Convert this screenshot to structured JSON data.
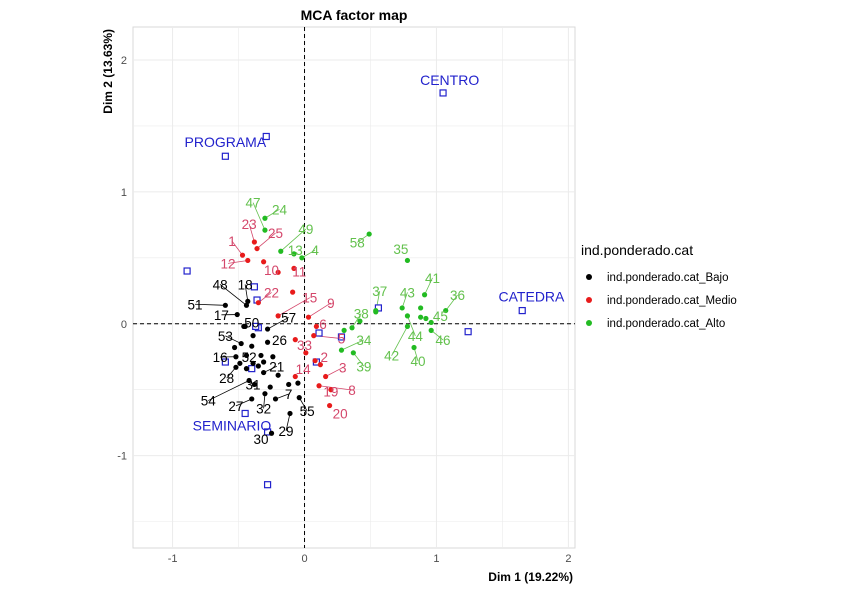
{
  "chart_data": {
    "type": "scatter",
    "title": "MCA factor map",
    "xlabel": "Dim 1 (19.22%)",
    "ylabel": "Dim 2 (13.63%)",
    "xlim": [
      -1.3,
      2.05
    ],
    "ylim": [
      -1.7,
      2.25
    ],
    "xticks": [
      -1,
      0,
      1,
      2
    ],
    "yticks": [
      -1,
      0,
      1,
      2
    ],
    "grid": true,
    "legend": {
      "title": "ind.ponderado.cat",
      "position": "right",
      "entries": [
        {
          "label": "ind.ponderado.cat_Bajo",
          "color": "#000000"
        },
        {
          "label": "ind.ponderado.cat_Medio",
          "color": "#e81b1b"
        },
        {
          "label": "ind.ponderado.cat_Alto",
          "color": "#22bb22"
        }
      ]
    },
    "colors": {
      "Bajo_point": "#000000",
      "Bajo_label": "#000000",
      "Medio_point": "#e81b1b",
      "Medio_label": "#d4466a",
      "Alto_point": "#22bb22",
      "Alto_label": "#63c14d",
      "category": "#2222cc"
    },
    "series": [
      {
        "name": "ind.ponderado.cat_Bajo",
        "points": [
          {
            "id": "7",
            "x": -0.22,
            "y": -0.57,
            "lx": -0.12,
            "ly": -0.57
          },
          {
            "id": "16",
            "x": -0.52,
            "y": -0.25,
            "lx": -0.64,
            "ly": -0.29
          },
          {
            "id": "17",
            "x": -0.51,
            "y": 0.07,
            "lx": -0.63,
            "ly": 0.03
          },
          {
            "id": "18",
            "x": -0.43,
            "y": 0.17,
            "lx": -0.45,
            "ly": 0.26
          },
          {
            "id": "21",
            "x": -0.31,
            "y": -0.37,
            "lx": -0.21,
            "ly": -0.36
          },
          {
            "id": "26",
            "x": -0.28,
            "y": -0.14,
            "lx": -0.19,
            "ly": -0.16
          },
          {
            "id": "27",
            "x": -0.4,
            "y": -0.57,
            "lx": -0.52,
            "ly": -0.66
          },
          {
            "id": "28",
            "x": -0.52,
            "y": -0.33,
            "lx": -0.59,
            "ly": -0.45
          },
          {
            "id": "29",
            "x": -0.11,
            "y": -0.68,
            "lx": -0.14,
            "ly": -0.85
          },
          {
            "id": "30",
            "x": -0.25,
            "y": -0.83,
            "lx": -0.33,
            "ly": -0.91
          },
          {
            "id": "31",
            "x": -0.38,
            "y": -0.46,
            "lx": -0.39,
            "ly": -0.5
          },
          {
            "id": "32",
            "x": -0.3,
            "y": -0.53,
            "lx": -0.31,
            "ly": -0.68
          },
          {
            "id": "48",
            "x": -0.44,
            "y": 0.14,
            "lx": -0.64,
            "ly": 0.26
          },
          {
            "id": "50",
            "x": -0.46,
            "y": -0.02,
            "lx": -0.4,
            "ly": -0.03
          },
          {
            "id": "51",
            "x": -0.6,
            "y": 0.14,
            "lx": -0.83,
            "ly": 0.11
          },
          {
            "id": "52",
            "x": -0.39,
            "y": -0.3,
            "lx": -0.42,
            "ly": -0.29
          },
          {
            "id": "53",
            "x": -0.48,
            "y": -0.15,
            "lx": -0.6,
            "ly": -0.13
          },
          {
            "id": "54",
            "x": -0.42,
            "y": -0.43,
            "lx": -0.73,
            "ly": -0.62
          },
          {
            "id": "55",
            "x": -0.04,
            "y": -0.56,
            "lx": 0.02,
            "ly": -0.7
          },
          {
            "id": "57",
            "x": -0.28,
            "y": -0.04,
            "lx": -0.12,
            "ly": 0.01
          },
          {
            "id": "b1",
            "x": -0.53,
            "y": -0.18
          },
          {
            "id": "b2",
            "x": -0.44,
            "y": -0.24
          },
          {
            "id": "b3",
            "x": -0.44,
            "y": -0.34
          },
          {
            "id": "b4",
            "x": -0.33,
            "y": -0.24
          },
          {
            "id": "b5",
            "x": -0.39,
            "y": -0.09
          },
          {
            "id": "b6",
            "x": -0.35,
            "y": -0.32
          },
          {
            "id": "b7",
            "x": -0.12,
            "y": -0.46
          },
          {
            "id": "b8",
            "x": -0.2,
            "y": -0.39
          },
          {
            "id": "b9",
            "x": -0.05,
            "y": -0.45
          },
          {
            "id": "b10",
            "x": -0.24,
            "y": -0.25
          },
          {
            "id": "b11",
            "x": -0.31,
            "y": -0.29
          },
          {
            "id": "b12",
            "x": -0.4,
            "y": -0.17
          },
          {
            "id": "b13",
            "x": -0.49,
            "y": -0.3
          },
          {
            "id": "b14",
            "x": -0.26,
            "y": -0.48
          },
          {
            "id": "b15",
            "x": -0.45,
            "y": -0.02
          }
        ]
      },
      {
        "name": "ind.ponderado.cat_Medio",
        "points": [
          {
            "id": "1",
            "x": -0.47,
            "y": 0.52,
            "lx": -0.55,
            "ly": 0.59
          },
          {
            "id": "2",
            "x": 0.12,
            "y": -0.31,
            "lx": 0.15,
            "ly": -0.29
          },
          {
            "id": "3",
            "x": 0.16,
            "y": -0.4,
            "lx": 0.29,
            "ly": -0.37
          },
          {
            "id": "5",
            "x": 0.07,
            "y": -0.09,
            "lx": 0.28,
            "ly": -0.15
          },
          {
            "id": "6",
            "x": 0.09,
            "y": -0.02,
            "lx": 0.14,
            "ly": -0.04
          },
          {
            "id": "8",
            "x": 0.11,
            "y": -0.47,
            "lx": 0.36,
            "ly": -0.54
          },
          {
            "id": "9",
            "x": 0.03,
            "y": 0.05,
            "lx": 0.2,
            "ly": 0.12
          },
          {
            "id": "10",
            "x": -0.31,
            "y": 0.47,
            "lx": -0.25,
            "ly": 0.37
          },
          {
            "id": "11",
            "x": -0.08,
            "y": 0.42,
            "lx": -0.04,
            "ly": 0.36
          },
          {
            "id": "12",
            "x": -0.43,
            "y": 0.48,
            "lx": -0.58,
            "ly": 0.42
          },
          {
            "id": "14",
            "x": -0.07,
            "y": -0.4,
            "lx": -0.01,
            "ly": -0.38
          },
          {
            "id": "15",
            "x": -0.2,
            "y": 0.06,
            "lx": 0.04,
            "ly": 0.16
          },
          {
            "id": "19",
            "x": 0.2,
            "y": -0.5,
            "lx": 0.2,
            "ly": -0.55
          },
          {
            "id": "20",
            "x": 0.19,
            "y": -0.62,
            "lx": 0.27,
            "ly": -0.72
          },
          {
            "id": "22",
            "x": -0.35,
            "y": 0.16,
            "lx": -0.25,
            "ly": 0.2
          },
          {
            "id": "23",
            "x": -0.38,
            "y": 0.62,
            "lx": -0.42,
            "ly": 0.72
          },
          {
            "id": "25",
            "x": -0.36,
            "y": 0.57,
            "lx": -0.22,
            "ly": 0.65
          },
          {
            "id": "33",
            "x": -0.07,
            "y": -0.12,
            "lx": 0.0,
            "ly": -0.2
          },
          {
            "id": "m1",
            "x": -0.2,
            "y": 0.39
          },
          {
            "id": "m2",
            "x": 0.01,
            "y": -0.22
          },
          {
            "id": "m3",
            "x": 0.08,
            "y": -0.28
          },
          {
            "id": "m4",
            "x": -0.09,
            "y": 0.24
          }
        ]
      },
      {
        "name": "ind.ponderado.cat_Alto",
        "points": [
          {
            "id": "4",
            "x": -0.02,
            "y": 0.5,
            "lx": 0.08,
            "ly": 0.52
          },
          {
            "id": "13",
            "x": -0.08,
            "y": 0.53,
            "lx": -0.07,
            "ly": 0.52
          },
          {
            "id": "24",
            "x": -0.3,
            "y": 0.8,
            "lx": -0.19,
            "ly": 0.83
          },
          {
            "id": "34",
            "x": 0.28,
            "y": -0.2,
            "lx": 0.45,
            "ly": -0.16
          },
          {
            "id": "35",
            "x": 0.78,
            "y": 0.48,
            "lx": 0.73,
            "ly": 0.53
          },
          {
            "id": "36",
            "x": 1.07,
            "y": 0.1,
            "lx": 1.16,
            "ly": 0.18
          },
          {
            "id": "37",
            "x": 0.54,
            "y": 0.09,
            "lx": 0.57,
            "ly": 0.21
          },
          {
            "id": "38",
            "x": 0.36,
            "y": -0.03,
            "lx": 0.43,
            "ly": 0.04
          },
          {
            "id": "39",
            "x": 0.37,
            "y": -0.22,
            "lx": 0.45,
            "ly": -0.36
          },
          {
            "id": "40",
            "x": 0.83,
            "y": -0.18,
            "lx": 0.86,
            "ly": -0.32
          },
          {
            "id": "41",
            "x": 0.91,
            "y": 0.22,
            "lx": 0.97,
            "ly": 0.31
          },
          {
            "id": "42",
            "x": 0.78,
            "y": -0.02,
            "lx": 0.66,
            "ly": -0.28
          },
          {
            "id": "43",
            "x": 0.74,
            "y": 0.12,
            "lx": 0.78,
            "ly": 0.2
          },
          {
            "id": "44",
            "x": 0.78,
            "y": 0.06,
            "lx": 0.84,
            "ly": -0.13
          },
          {
            "id": "45",
            "x": 0.96,
            "y": 0.01,
            "lx": 1.03,
            "ly": 0.02
          },
          {
            "id": "46",
            "x": 0.96,
            "y": -0.05,
            "lx": 1.05,
            "ly": -0.16
          },
          {
            "id": "47",
            "x": -0.3,
            "y": 0.71,
            "lx": -0.39,
            "ly": 0.88
          },
          {
            "id": "49",
            "x": -0.18,
            "y": 0.55,
            "lx": 0.01,
            "ly": 0.68
          },
          {
            "id": "58",
            "x": 0.49,
            "y": 0.68,
            "lx": 0.4,
            "ly": 0.58
          },
          {
            "id": "a1",
            "x": 0.54,
            "y": 0.1
          },
          {
            "id": "a2",
            "x": 0.88,
            "y": 0.05
          },
          {
            "id": "a3",
            "x": 0.92,
            "y": 0.04
          },
          {
            "id": "a4",
            "x": 0.88,
            "y": 0.12
          },
          {
            "id": "a5",
            "x": 0.3,
            "y": -0.05
          },
          {
            "id": "a6",
            "x": 0.42,
            "y": 0.02
          }
        ]
      }
    ],
    "categories": [
      {
        "label": "CENTRO",
        "x": 1.05,
        "y": 1.75,
        "lx": 1.1,
        "ly": 1.81
      },
      {
        "label": "PROGRAMA",
        "x": -0.6,
        "y": 1.27,
        "lx": -0.6,
        "ly": 1.34
      },
      {
        "label": "CATEDRA",
        "x": 1.65,
        "y": 0.1,
        "lx": 1.72,
        "ly": 0.17
      },
      {
        "label": "SEMINARIO",
        "x": -0.45,
        "y": -0.68,
        "lx": -0.55,
        "ly": -0.81
      },
      {
        "label": "",
        "x": -0.29,
        "y": 1.42
      },
      {
        "label": "",
        "x": -0.89,
        "y": 0.4
      },
      {
        "label": "",
        "x": -0.38,
        "y": 0.28
      },
      {
        "label": "",
        "x": -0.36,
        "y": 0.18
      },
      {
        "label": "",
        "x": -0.35,
        "y": -0.03
      },
      {
        "label": "",
        "x": -0.37,
        "y": -0.02
      },
      {
        "label": "",
        "x": 0.11,
        "y": -0.07
      },
      {
        "label": "",
        "x": 0.28,
        "y": -0.1
      },
      {
        "label": "",
        "x": 0.56,
        "y": 0.12
      },
      {
        "label": "",
        "x": 1.24,
        "y": -0.06
      },
      {
        "label": "",
        "x": -0.6,
        "y": -0.29
      },
      {
        "label": "",
        "x": 0.09,
        "y": -0.29
      },
      {
        "label": "",
        "x": -0.28,
        "y": -1.22
      },
      {
        "label": "",
        "x": -0.28,
        "y": -0.82
      },
      {
        "label": "",
        "x": -0.4,
        "y": -0.34
      }
    ]
  }
}
